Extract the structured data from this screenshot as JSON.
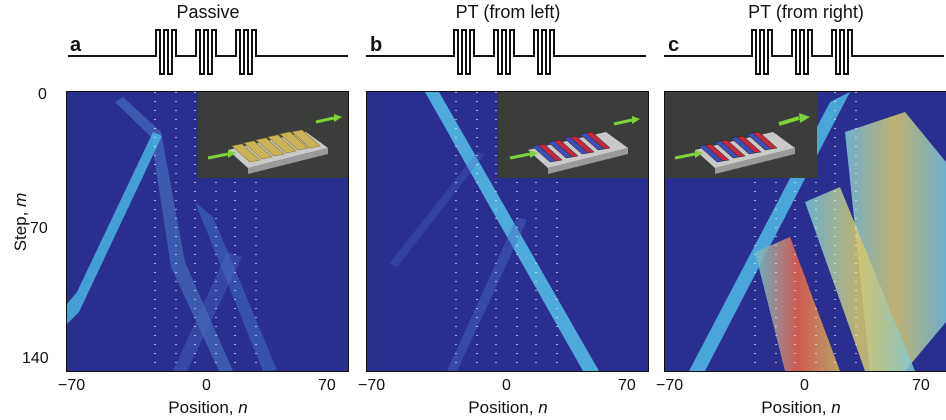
{
  "panels": [
    {
      "letter": "a",
      "title": "Passive",
      "inset": "passive"
    },
    {
      "letter": "b",
      "title": "PT  (from left)",
      "inset": "pt"
    },
    {
      "letter": "c",
      "title": "PT  (from right)",
      "inset": "pt"
    }
  ],
  "axis": {
    "y_label_main": "Step, ",
    "y_label_var": "m",
    "x_label_main": "Position, ",
    "x_label_var": "n",
    "y_ticks": [
      "0",
      "70",
      "140"
    ],
    "x_ticks": [
      "−70",
      "0",
      "70"
    ]
  },
  "colors": {
    "background_field": "#2a2f8f",
    "beam_low": "#3aa7d8",
    "beam_high": "#b8d96a",
    "beam_hot": "#e0604a",
    "inset_bg": "#3b3d3b",
    "gold_strip": "#c9b35a",
    "red_strip": "#c4283c",
    "blue_strip": "#3b4fb8",
    "arrow": "#7fd23c"
  }
}
